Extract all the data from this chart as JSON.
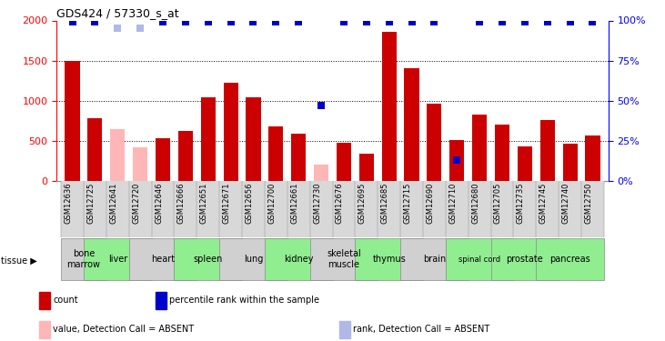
{
  "title": "GDS424 / 57330_s_at",
  "gsm_labels": [
    "GSM12636",
    "GSM12725",
    "GSM12641",
    "GSM12720",
    "GSM12646",
    "GSM12666",
    "GSM12651",
    "GSM12671",
    "GSM12656",
    "GSM12700",
    "GSM12661",
    "GSM12730",
    "GSM12676",
    "GSM12695",
    "GSM12685",
    "GSM12715",
    "GSM12690",
    "GSM12710",
    "GSM12680",
    "GSM12705",
    "GSM12735",
    "GSM12745",
    "GSM12740",
    "GSM12750"
  ],
  "counts": [
    1500,
    780,
    0,
    420,
    530,
    620,
    1040,
    1220,
    1040,
    680,
    590,
    0,
    470,
    340,
    1860,
    1400,
    960,
    510,
    830,
    700,
    430,
    760,
    460,
    560
  ],
  "absent_value": [
    false,
    false,
    true,
    true,
    false,
    false,
    false,
    false,
    false,
    false,
    false,
    true,
    false,
    false,
    false,
    false,
    false,
    false,
    false,
    false,
    false,
    false,
    false,
    false
  ],
  "absent_counts": [
    0,
    0,
    640,
    420,
    0,
    0,
    0,
    0,
    0,
    0,
    0,
    200,
    0,
    0,
    0,
    0,
    0,
    0,
    0,
    0,
    0,
    0,
    0,
    0
  ],
  "absent_rank": [
    false,
    false,
    true,
    true,
    false,
    false,
    false,
    false,
    false,
    false,
    false,
    false,
    false,
    false,
    false,
    false,
    false,
    false,
    false,
    false,
    false,
    false,
    false,
    false
  ],
  "rank_values": [
    99,
    99,
    95,
    95,
    99,
    99,
    99,
    99,
    99,
    99,
    99,
    47,
    99,
    99,
    99,
    99,
    99,
    13,
    99,
    99,
    99,
    99,
    99,
    99
  ],
  "tissue_groups": [
    {
      "label": "bone\nmarrow",
      "start": 0,
      "end": 1,
      "color": "#d0d0d0"
    },
    {
      "label": "liver",
      "start": 1,
      "end": 3,
      "color": "#90EE90"
    },
    {
      "label": "heart",
      "start": 3,
      "end": 5,
      "color": "#d0d0d0"
    },
    {
      "label": "spleen",
      "start": 5,
      "end": 7,
      "color": "#90EE90"
    },
    {
      "label": "lung",
      "start": 7,
      "end": 9,
      "color": "#d0d0d0"
    },
    {
      "label": "kidney",
      "start": 9,
      "end": 11,
      "color": "#90EE90"
    },
    {
      "label": "skeletal\nmuscle",
      "start": 11,
      "end": 13,
      "color": "#d0d0d0"
    },
    {
      "label": "thymus",
      "start": 13,
      "end": 15,
      "color": "#90EE90"
    },
    {
      "label": "brain",
      "start": 15,
      "end": 17,
      "color": "#d0d0d0"
    },
    {
      "label": "spinal cord",
      "start": 17,
      "end": 19,
      "color": "#90EE90"
    },
    {
      "label": "prostate",
      "start": 19,
      "end": 21,
      "color": "#90EE90"
    },
    {
      "label": "pancreas",
      "start": 21,
      "end": 23,
      "color": "#90EE90"
    }
  ],
  "bar_color_normal": "#cc0000",
  "bar_color_absent": "#ffb6b6",
  "rank_color_normal": "#0000cc",
  "rank_color_absent": "#b0b8e8",
  "ylim_left": [
    0,
    2000
  ],
  "ylim_right": [
    0,
    100
  ],
  "yticks_left": [
    0,
    500,
    1000,
    1500,
    2000
  ],
  "yticks_right": [
    0,
    25,
    50,
    75,
    100
  ],
  "grid_values": [
    500,
    1000,
    1500
  ],
  "bar_width": 0.65,
  "figure_bg": "#ffffff",
  "plot_bg": "#ffffff"
}
